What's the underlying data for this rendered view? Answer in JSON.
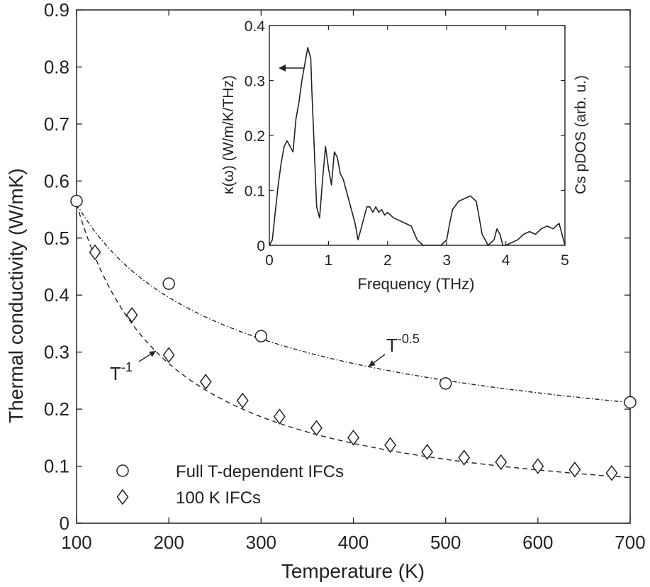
{
  "chart_data": [
    {
      "type": "scatter",
      "title": "",
      "xlabel": "Temperature (K)",
      "ylabel": "Thermal conductivity (W/mK)",
      "xlim": [
        100,
        700
      ],
      "ylim": [
        0,
        0.9
      ],
      "xticks": [
        "100",
        "200",
        "300",
        "400",
        "500",
        "600",
        "700"
      ],
      "yticks": [
        "0",
        "0.1",
        "0.2",
        "0.3",
        "0.4",
        "0.5",
        "0.6",
        "0.7",
        "0.8",
        "0.9"
      ],
      "grid": false,
      "legend_position": "bottom-left",
      "series": [
        {
          "name": "Full T-dependent IFCs",
          "marker": "circle",
          "x": [
            100,
            200,
            300,
            500,
            700
          ],
          "y": [
            0.565,
            0.42,
            0.328,
            0.245,
            0.212
          ]
        },
        {
          "name": "100 K IFCs",
          "marker": "diamond",
          "x": [
            120,
            160,
            200,
            240,
            280,
            320,
            360,
            400,
            440,
            480,
            520,
            560,
            600,
            640,
            680
          ],
          "y": [
            0.475,
            0.365,
            0.295,
            0.248,
            0.215,
            0.187,
            0.167,
            0.15,
            0.137,
            0.125,
            0.115,
            0.107,
            0.1,
            0.094,
            0.088
          ]
        }
      ],
      "fits": [
        {
          "label": "T",
          "exponent": "-0.5",
          "power": -0.5,
          "k0": 0.56,
          "style": "dash-dot"
        },
        {
          "label": "T",
          "exponent": "-1",
          "power": -1,
          "k0": 0.56,
          "style": "dashed"
        }
      ]
    },
    {
      "type": "line",
      "title": "",
      "xlabel": "Frequency (THz)",
      "ylabel_left": "κ(ω) (W/m/K/THz)",
      "ylabel_right": "Cs pDOS (arb. u.)",
      "xlim": [
        0,
        5
      ],
      "ylim": [
        0,
        0.4
      ],
      "xticks": [
        "0",
        "1",
        "2",
        "3",
        "4",
        "5"
      ],
      "yticks": [
        "0",
        "0.1",
        "0.2",
        "0.3",
        "0.4"
      ],
      "series": [
        {
          "x": [
            0.0,
            0.05,
            0.1,
            0.15,
            0.2,
            0.25,
            0.3,
            0.35,
            0.4,
            0.45,
            0.5,
            0.55,
            0.6,
            0.65,
            0.7,
            0.72,
            0.75,
            0.78,
            0.8,
            0.85,
            0.9,
            0.95,
            1.0,
            1.05,
            1.1,
            1.15,
            1.2,
            1.25,
            1.3,
            1.35,
            1.4,
            1.45,
            1.5,
            1.55,
            1.6,
            1.65,
            1.7,
            1.75,
            1.8,
            1.85,
            1.9,
            1.95,
            2.0,
            2.1,
            2.2,
            2.3,
            2.4,
            2.5,
            2.6,
            2.7,
            2.8,
            2.9,
            3.0,
            3.05,
            3.1,
            3.2,
            3.3,
            3.4,
            3.45,
            3.5,
            3.55,
            3.6,
            3.7,
            3.8,
            3.85,
            3.9,
            3.95,
            4.0,
            4.1,
            4.2,
            4.3,
            4.4,
            4.5,
            4.6,
            4.7,
            4.8,
            4.9,
            5.0
          ],
          "y": [
            0.0,
            0.01,
            0.06,
            0.11,
            0.15,
            0.18,
            0.19,
            0.18,
            0.17,
            0.23,
            0.26,
            0.3,
            0.33,
            0.36,
            0.34,
            0.28,
            0.2,
            0.12,
            0.07,
            0.05,
            0.12,
            0.18,
            0.14,
            0.11,
            0.17,
            0.16,
            0.13,
            0.12,
            0.1,
            0.08,
            0.06,
            0.04,
            0.01,
            0.03,
            0.05,
            0.07,
            0.07,
            0.06,
            0.07,
            0.06,
            0.065,
            0.055,
            0.06,
            0.05,
            0.045,
            0.04,
            0.035,
            0.01,
            0.0,
            0.0,
            0.0,
            0.0,
            0.01,
            0.04,
            0.065,
            0.08,
            0.085,
            0.09,
            0.085,
            0.08,
            0.05,
            0.02,
            0.0,
            0.01,
            0.03,
            0.02,
            0.0,
            0.0,
            0.005,
            0.01,
            0.02,
            0.025,
            0.02,
            0.03,
            0.035,
            0.03,
            0.04,
            0.0
          ]
        }
      ]
    }
  ]
}
